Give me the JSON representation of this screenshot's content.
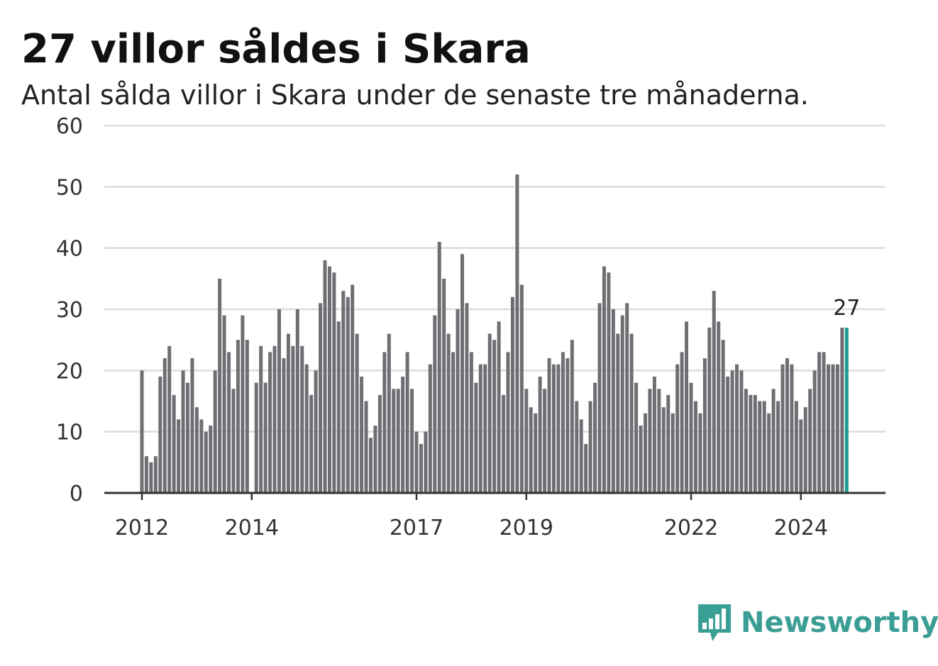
{
  "title": "27 villor såldes i Skara",
  "subtitle": "Antal sålda villor i Skara under de senaste tre månaderna.",
  "brand": {
    "name": "Newsworthy",
    "icon": "newsworthy-logo-icon",
    "color": "#3a9e95"
  },
  "chart_data": {
    "type": "bar",
    "x_start": "2012-01",
    "x_interval": "month",
    "x_tick_labels": [
      "2012",
      "2014",
      "2017",
      "2019",
      "2022",
      "2024"
    ],
    "y_tick_labels": [
      "0",
      "10",
      "20",
      "30",
      "40",
      "50",
      "60"
    ],
    "ylim": [
      0,
      60
    ],
    "grid": true,
    "bar_color": "#6f6e73",
    "highlight_color": "#1a9e8f",
    "highlight_label": "27",
    "values": [
      20,
      6,
      5,
      6,
      19,
      22,
      24,
      16,
      12,
      20,
      18,
      22,
      14,
      12,
      10,
      11,
      20,
      35,
      29,
      23,
      17,
      25,
      29,
      25,
      0,
      18,
      24,
      18,
      23,
      24,
      30,
      22,
      26,
      24,
      30,
      24,
      21,
      16,
      20,
      31,
      38,
      37,
      36,
      28,
      33,
      32,
      34,
      26,
      19,
      15,
      9,
      11,
      16,
      23,
      26,
      17,
      17,
      19,
      23,
      17,
      10,
      8,
      10,
      21,
      29,
      41,
      35,
      26,
      23,
      30,
      39,
      31,
      23,
      18,
      21,
      21,
      26,
      25,
      28,
      16,
      23,
      32,
      52,
      34,
      17,
      14,
      13,
      19,
      17,
      22,
      21,
      21,
      23,
      22,
      25,
      15,
      12,
      8,
      15,
      18,
      31,
      37,
      36,
      30,
      26,
      29,
      31,
      26,
      18,
      11,
      13,
      17,
      19,
      17,
      14,
      16,
      13,
      21,
      23,
      28,
      18,
      15,
      13,
      22,
      27,
      33,
      28,
      25,
      19,
      20,
      21,
      20,
      17,
      16,
      16,
      15,
      15,
      13,
      17,
      15,
      21,
      22,
      21,
      15,
      12,
      14,
      17,
      20,
      23,
      23,
      21,
      21,
      21,
      27,
      27
    ]
  }
}
